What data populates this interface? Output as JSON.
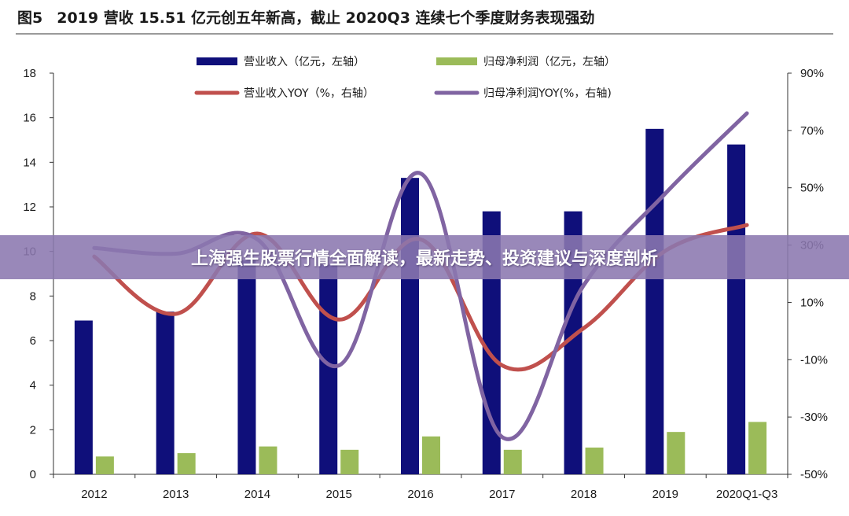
{
  "figure": {
    "label": "图5",
    "title": "2019 营收 15.51 亿元创五年新高，截止 2020Q3 连续七个季度财务表现强劲"
  },
  "banner": {
    "text": "上海强生股票行情全面解读，最新走势、投资建议与深度剖析"
  },
  "chart_data": {
    "type": "bar",
    "title": "2019 营收 15.51 亿元创五年新高，截止 2020Q3 连续七个季度财务表现强劲",
    "categories": [
      "2012",
      "2013",
      "2014",
      "2015",
      "2016",
      "2017",
      "2018",
      "2019",
      "2020Q1-Q3"
    ],
    "left_axis": {
      "min": 0,
      "max": 18,
      "ticks": [
        0,
        2,
        4,
        6,
        8,
        10,
        12,
        14,
        16,
        18
      ]
    },
    "right_axis": {
      "min": -50,
      "max": 90,
      "ticks": [
        -50,
        -30,
        -10,
        10,
        30,
        50,
        70,
        90
      ],
      "unit": "%"
    },
    "series": [
      {
        "name": "营业收入（亿元，左轴）",
        "type": "bar",
        "axis": "left",
        "color": "#0f0f7a",
        "values": [
          6.9,
          7.3,
          9.6,
          9.4,
          13.3,
          11.8,
          11.8,
          15.5,
          14.8
        ]
      },
      {
        "name": "归母净利润（亿元，左轴）",
        "type": "bar",
        "axis": "left",
        "color": "#9bbb59",
        "values": [
          0.8,
          0.95,
          1.25,
          1.1,
          1.7,
          1.1,
          1.2,
          1.9,
          2.35
        ]
      },
      {
        "name": "营业收入YOY（%，右轴）",
        "type": "line",
        "axis": "right",
        "color": "#c0504d",
        "values": [
          26,
          6,
          34,
          4,
          32,
          -12,
          1,
          28,
          37
        ]
      },
      {
        "name": "归母净利润YOY(%，右轴)",
        "type": "line",
        "axis": "right",
        "color": "#8064a2",
        "values": [
          29,
          27,
          32,
          -12,
          55,
          -37,
          16,
          48,
          76
        ]
      }
    ],
    "legend_position": "top",
    "grid": false
  }
}
